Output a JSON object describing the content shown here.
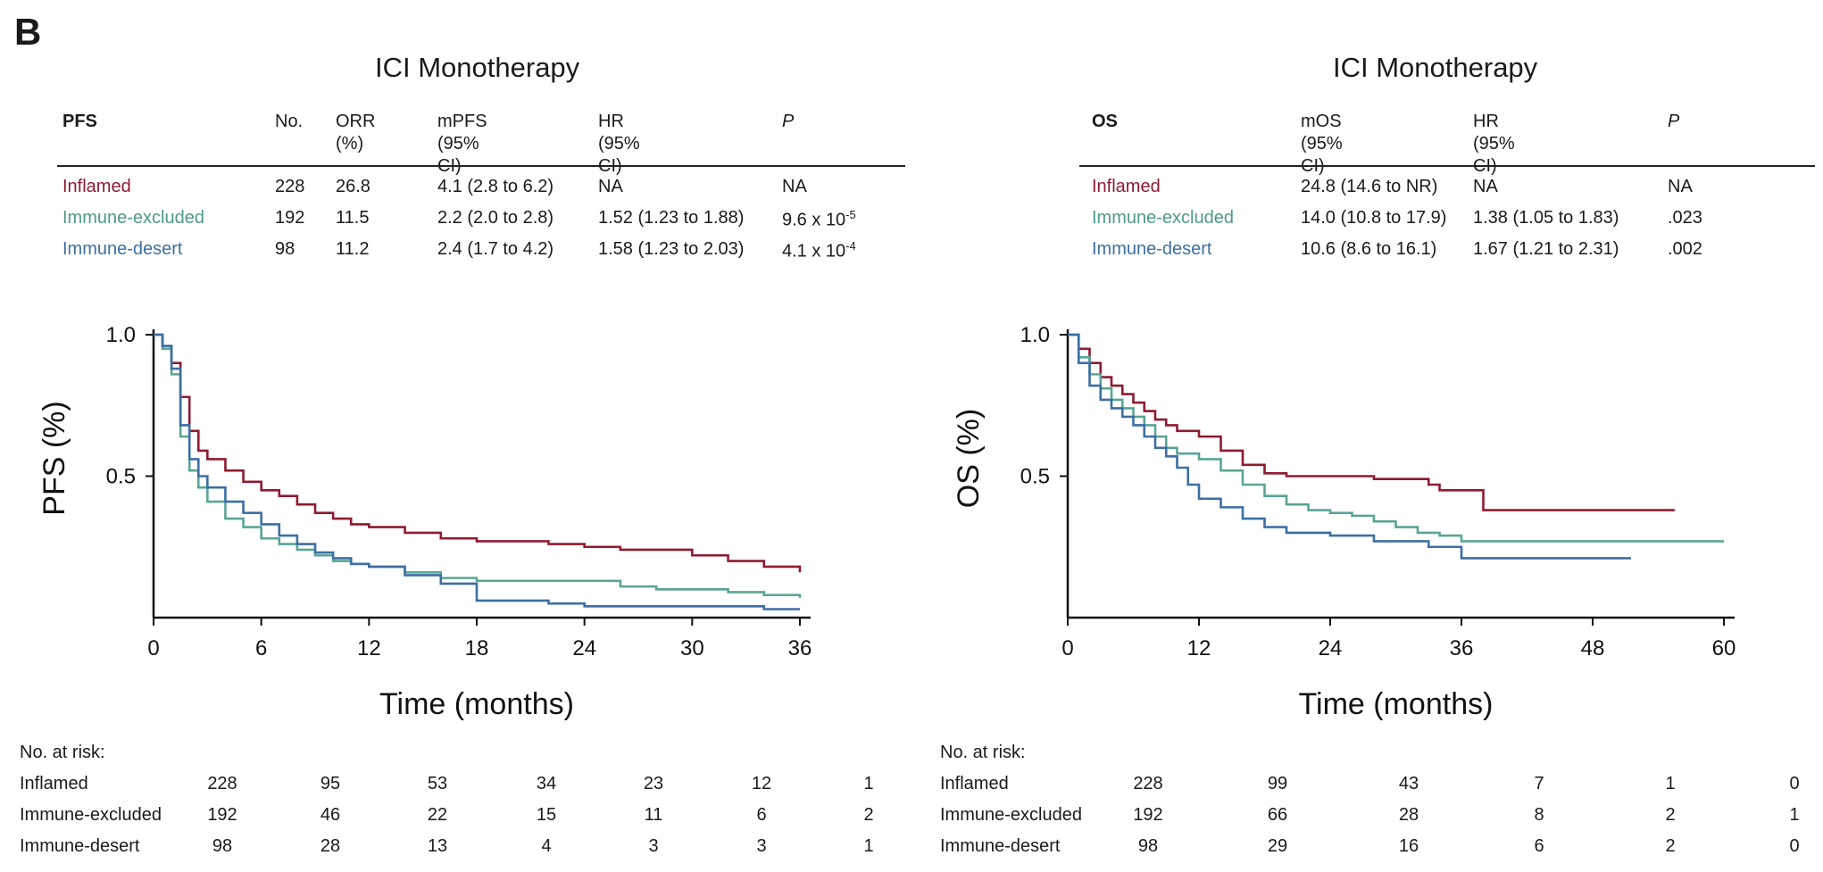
{
  "panel_label": "B",
  "left": {
    "title": "ICI Monotherapy",
    "table": {
      "headers": [
        "PFS",
        "No.",
        "ORR (%)",
        "mPFS",
        "(95% CI)",
        "HR (95% CI)",
        "P"
      ],
      "rows": [
        {
          "group": "Inflamed",
          "no": "228",
          "orr": "26.8",
          "median": "4.1 (2.8 to 6.2)",
          "hr": "NA",
          "p_base": "NA",
          "p_exp": ""
        },
        {
          "group": "Immune-excluded",
          "no": "192",
          "orr": "11.5",
          "median": "2.2 (2.0 to 2.8)",
          "hr": "1.52 (1.23 to 1.88)",
          "p_base": "9.6 x 10",
          "p_exp": "-5"
        },
        {
          "group": "Immune-desert",
          "no": "98",
          "orr": "11.2",
          "median": "2.4 (1.7 to 4.2)",
          "hr": "1.58 (1.23 to 2.03)",
          "p_base": "4.1 x 10",
          "p_exp": "-4"
        }
      ]
    },
    "risk": {
      "label": "No. at risk:",
      "rows": [
        {
          "group": "Inflamed",
          "values": [
            "228",
            "95",
            "53",
            "34",
            "23",
            "12",
            "1"
          ]
        },
        {
          "group": "Immune-excluded",
          "values": [
            "192",
            "46",
            "22",
            "15",
            "11",
            "6",
            "2"
          ]
        },
        {
          "group": "Immune-desert",
          "values": [
            "98",
            "28",
            "13",
            "4",
            "3",
            "3",
            "1"
          ]
        }
      ]
    }
  },
  "right": {
    "title": "ICI Monotherapy",
    "table": {
      "headers": [
        "OS",
        "mOS",
        "(95% CI)",
        "HR (95% CI)",
        "P"
      ],
      "rows": [
        {
          "group": "Inflamed",
          "median": "24.8 (14.6 to NR)",
          "hr": "NA",
          "p": "NA"
        },
        {
          "group": "Immune-excluded",
          "median": "14.0 (10.8 to 17.9)",
          "hr": "1.38 (1.05 to 1.83)",
          "p": ".023"
        },
        {
          "group": "Immune-desert",
          "median": "10.6 (8.6 to 16.1)",
          "hr": "1.67 (1.21 to 2.31)",
          "p": ".002"
        }
      ]
    },
    "risk": {
      "label": "No. at risk:",
      "rows": [
        {
          "group": "Inflamed",
          "values": [
            "228",
            "99",
            "43",
            "7",
            "1",
            "0"
          ]
        },
        {
          "group": "Immune-excluded",
          "values": [
            "192",
            "66",
            "28",
            "8",
            "2",
            "1"
          ]
        },
        {
          "group": "Immune-desert",
          "values": [
            "98",
            "29",
            "16",
            "6",
            "2",
            "0"
          ]
        }
      ]
    }
  },
  "colors": {
    "Inflamed": "#8e1b32",
    "Immune-excluded": "#5aa595",
    "Immune-desert": "#3d6fa3"
  },
  "chart_data": [
    {
      "type": "line",
      "title": "",
      "xlabel": "Time (months)",
      "ylabel": "PFS (%)",
      "xlim": [
        0,
        36
      ],
      "ylim": [
        0,
        1
      ],
      "xticks": [
        "0",
        "6",
        "12",
        "18",
        "24",
        "30",
        "36"
      ],
      "yticks": [
        "0.5",
        "1.0"
      ],
      "step": true,
      "series": [
        {
          "name": "Inflamed",
          "x": [
            0,
            0.5,
            1,
            1.5,
            2,
            2.5,
            3,
            4,
            5,
            6,
            7,
            8,
            9,
            10,
            11,
            12,
            14,
            16,
            18,
            20,
            22,
            24,
            26,
            28,
            30,
            32,
            34,
            36
          ],
          "y": [
            1,
            0.96,
            0.9,
            0.78,
            0.66,
            0.59,
            0.56,
            0.52,
            0.48,
            0.45,
            0.43,
            0.4,
            0.37,
            0.35,
            0.33,
            0.32,
            0.3,
            0.28,
            0.27,
            0.27,
            0.26,
            0.25,
            0.24,
            0.24,
            0.22,
            0.2,
            0.18,
            0.16
          ]
        },
        {
          "name": "Immune-excluded",
          "x": [
            0,
            0.5,
            1,
            1.5,
            2,
            2.5,
            3,
            4,
            5,
            6,
            7,
            8,
            9,
            10,
            11,
            12,
            14,
            16,
            18,
            20,
            22,
            24,
            26,
            28,
            30,
            32,
            34,
            36
          ],
          "y": [
            1,
            0.95,
            0.86,
            0.64,
            0.52,
            0.46,
            0.41,
            0.35,
            0.32,
            0.28,
            0.26,
            0.24,
            0.22,
            0.2,
            0.19,
            0.18,
            0.16,
            0.14,
            0.13,
            0.13,
            0.13,
            0.13,
            0.11,
            0.1,
            0.1,
            0.09,
            0.08,
            0.07
          ]
        },
        {
          "name": "Immune-desert",
          "x": [
            0,
            0.5,
            1,
            1.5,
            2,
            2.5,
            3,
            4,
            5,
            6,
            7,
            8,
            9,
            10,
            11,
            12,
            14,
            16,
            18,
            20,
            22,
            24,
            26,
            28,
            30,
            32,
            34,
            36
          ],
          "y": [
            1,
            0.96,
            0.88,
            0.68,
            0.56,
            0.5,
            0.46,
            0.41,
            0.37,
            0.33,
            0.29,
            0.26,
            0.23,
            0.21,
            0.19,
            0.18,
            0.15,
            0.12,
            0.06,
            0.06,
            0.05,
            0.04,
            0.04,
            0.04,
            0.04,
            0.04,
            0.03,
            0.03
          ]
        }
      ]
    },
    {
      "type": "line",
      "title": "",
      "xlabel": "Time (months)",
      "ylabel": "OS (%)",
      "xlim": [
        0,
        60
      ],
      "ylim": [
        0,
        1
      ],
      "xticks": [
        "0",
        "12",
        "24",
        "36",
        "48",
        "60"
      ],
      "yticks": [
        "0.5",
        "1.0"
      ],
      "step": true,
      "series": [
        {
          "name": "Inflamed",
          "x": [
            0,
            1,
            2,
            3,
            4,
            5,
            6,
            7,
            8,
            9,
            10,
            12,
            14,
            16,
            18,
            20,
            24,
            28,
            33,
            34,
            38,
            40,
            44,
            48,
            52,
            55.5
          ],
          "y": [
            1,
            0.95,
            0.9,
            0.85,
            0.82,
            0.79,
            0.76,
            0.73,
            0.7,
            0.68,
            0.66,
            0.64,
            0.59,
            0.54,
            0.51,
            0.5,
            0.5,
            0.49,
            0.47,
            0.45,
            0.38,
            0.38,
            0.38,
            0.38,
            0.38,
            0.38
          ]
        },
        {
          "name": "Immune-excluded",
          "x": [
            0,
            1,
            2,
            3,
            4,
            5,
            6,
            7,
            8,
            9,
            10,
            12,
            14,
            16,
            18,
            20,
            22,
            24,
            26,
            28,
            30,
            32,
            34,
            36,
            40,
            48,
            60
          ],
          "y": [
            1,
            0.92,
            0.86,
            0.81,
            0.77,
            0.74,
            0.71,
            0.68,
            0.64,
            0.6,
            0.58,
            0.56,
            0.52,
            0.47,
            0.43,
            0.4,
            0.38,
            0.37,
            0.36,
            0.34,
            0.32,
            0.3,
            0.29,
            0.27,
            0.27,
            0.27,
            0.27
          ]
        },
        {
          "name": "Immune-desert",
          "x": [
            0,
            1,
            2,
            3,
            4,
            5,
            6,
            7,
            8,
            9,
            10,
            11,
            12,
            14,
            16,
            18,
            20,
            24,
            28,
            33,
            36,
            40,
            48,
            51.5
          ],
          "y": [
            1,
            0.9,
            0.82,
            0.77,
            0.74,
            0.71,
            0.68,
            0.64,
            0.6,
            0.57,
            0.53,
            0.47,
            0.42,
            0.39,
            0.35,
            0.32,
            0.3,
            0.29,
            0.27,
            0.25,
            0.21,
            0.21,
            0.21,
            0.21
          ]
        }
      ]
    }
  ]
}
